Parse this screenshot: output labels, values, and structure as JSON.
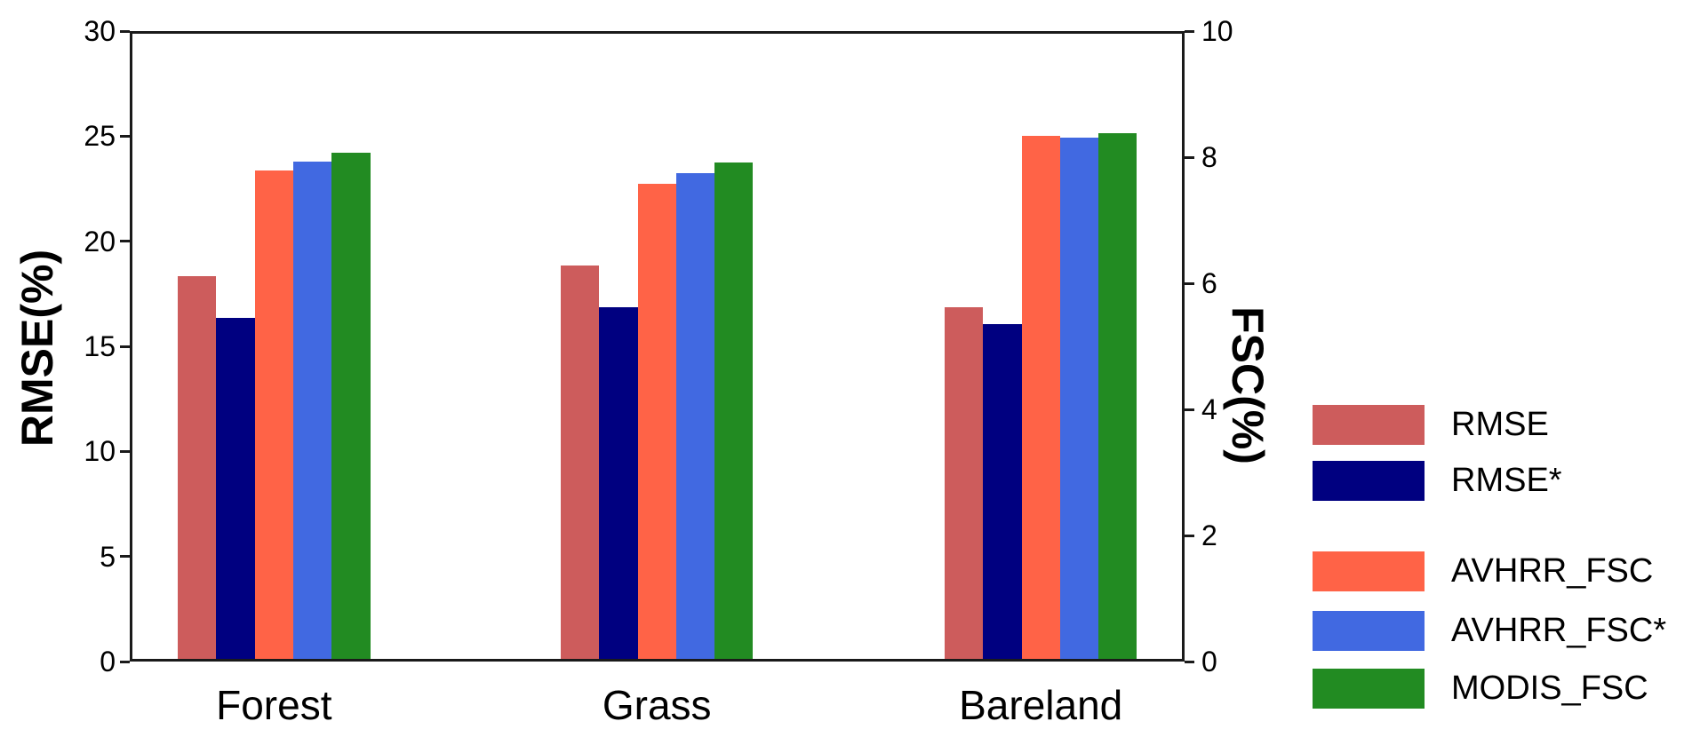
{
  "chart_data": {
    "type": "bar",
    "categories": [
      "Forest",
      "Grass",
      "Bareland"
    ],
    "series": [
      {
        "name": "RMSE",
        "axis": "left",
        "color": "#CD5C5C",
        "values": [
          18.3,
          18.8,
          16.8
        ]
      },
      {
        "name": "RMSE*",
        "axis": "left",
        "color": "#000080",
        "values": [
          16.3,
          16.8,
          16.0
        ]
      },
      {
        "name": "AVHRR_FSC",
        "axis": "right",
        "color": "#FF6347",
        "values": [
          7.78,
          7.56,
          8.33
        ]
      },
      {
        "name": "AVHRR_FSC*",
        "axis": "right",
        "color": "#4169E1",
        "values": [
          7.91,
          7.73,
          8.29
        ]
      },
      {
        "name": "MODIS_FSC",
        "axis": "right",
        "color": "#228B22",
        "values": [
          8.05,
          7.9,
          8.37
        ]
      }
    ],
    "left_axis": {
      "label": "RMSE(%)",
      "min": 0,
      "max": 30,
      "ticks": [
        0,
        5,
        10,
        15,
        20,
        25,
        30
      ]
    },
    "right_axis": {
      "label": "FSC(%)",
      "min": 0,
      "max": 10,
      "ticks": [
        0,
        2,
        4,
        6,
        8,
        10
      ]
    },
    "legend": {
      "position": "right-outside",
      "groups": [
        [
          "RMSE",
          "RMSE*"
        ],
        [
          "AVHRR_FSC",
          "AVHRR_FSC*",
          "MODIS_FSC"
        ]
      ]
    },
    "grid": false
  }
}
